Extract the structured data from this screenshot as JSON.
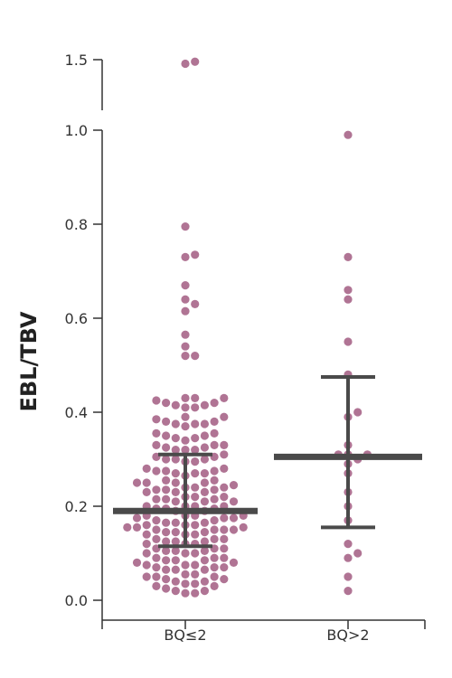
{
  "chart_data": {
    "type": "scatter",
    "subtype": "dot-plot-with-median-and-iqr",
    "ylabel": "EBL/TBV",
    "xlabel": "",
    "categories": [
      "BQ≤2",
      "BQ>2"
    ],
    "y_ticks": [
      "0.0",
      "0.2",
      "0.4",
      "0.6",
      "0.8",
      "1.0",
      "1.5"
    ],
    "y_axis_break": [
      1.0,
      1.5
    ],
    "grid": false,
    "legend": "none",
    "colors": {
      "points": "#b07494",
      "summary": "#4a4a4a",
      "axis": "#333333"
    },
    "series": [
      {
        "category": "BQ≤2",
        "median": 0.19,
        "iqr": [
          0.115,
          0.31
        ],
        "values": [
          1.48,
          1.46,
          0.795,
          0.735,
          0.73,
          0.67,
          0.64,
          0.63,
          0.615,
          0.565,
          0.54,
          0.52,
          0.52,
          0.43,
          0.43,
          0.43,
          0.425,
          0.42,
          0.42,
          0.415,
          0.415,
          0.41,
          0.41,
          0.39,
          0.39,
          0.385,
          0.38,
          0.38,
          0.375,
          0.375,
          0.375,
          0.37,
          0.355,
          0.355,
          0.35,
          0.35,
          0.345,
          0.345,
          0.34,
          0.33,
          0.33,
          0.33,
          0.325,
          0.325,
          0.32,
          0.32,
          0.32,
          0.31,
          0.305,
          0.305,
          0.3,
          0.3,
          0.3,
          0.295,
          0.295,
          0.28,
          0.28,
          0.275,
          0.275,
          0.275,
          0.27,
          0.27,
          0.27,
          0.265,
          0.255,
          0.255,
          0.25,
          0.25,
          0.25,
          0.25,
          0.245,
          0.24,
          0.24,
          0.24,
          0.235,
          0.235,
          0.235,
          0.23,
          0.23,
          0.23,
          0.22,
          0.22,
          0.22,
          0.215,
          0.215,
          0.215,
          0.21,
          0.21,
          0.21,
          0.2,
          0.2,
          0.2,
          0.2,
          0.195,
          0.195,
          0.195,
          0.19,
          0.19,
          0.18,
          0.18,
          0.18,
          0.18,
          0.175,
          0.175,
          0.175,
          0.17,
          0.17,
          0.165,
          0.165,
          0.165,
          0.16,
          0.16,
          0.16,
          0.155,
          0.155,
          0.155,
          0.15,
          0.15,
          0.15,
          0.15,
          0.145,
          0.145,
          0.145,
          0.14,
          0.14,
          0.14,
          0.13,
          0.13,
          0.13,
          0.125,
          0.125,
          0.125,
          0.12,
          0.12,
          0.12,
          0.11,
          0.11,
          0.11,
          0.105,
          0.105,
          0.105,
          0.1,
          0.1,
          0.1,
          0.09,
          0.09,
          0.09,
          0.085,
          0.085,
          0.085,
          0.08,
          0.08,
          0.075,
          0.075,
          0.075,
          0.07,
          0.07,
          0.07,
          0.065,
          0.065,
          0.065,
          0.055,
          0.055,
          0.05,
          0.05,
          0.05,
          0.045,
          0.045,
          0.04,
          0.04,
          0.035,
          0.035,
          0.03,
          0.03,
          0.025,
          0.02,
          0.02,
          0.015,
          0.015
        ]
      },
      {
        "category": "BQ>2",
        "median": 0.305,
        "iqr": [
          0.155,
          0.475
        ],
        "values": [
          0.99,
          0.73,
          0.66,
          0.64,
          0.55,
          0.48,
          0.4,
          0.39,
          0.33,
          0.31,
          0.31,
          0.31,
          0.3,
          0.29,
          0.27,
          0.23,
          0.2,
          0.17,
          0.12,
          0.1,
          0.09,
          0.05,
          0.02
        ]
      }
    ]
  }
}
